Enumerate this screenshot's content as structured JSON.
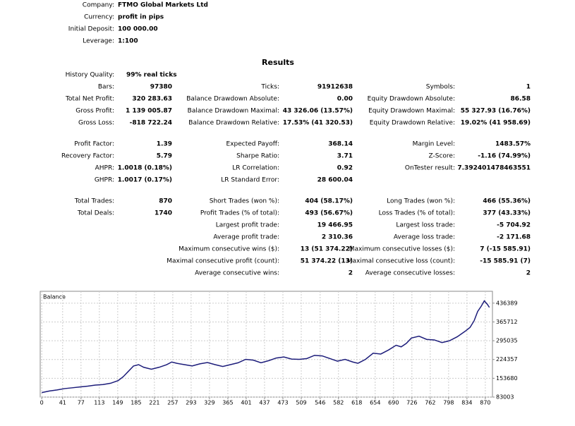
{
  "header": {
    "fields": [
      {
        "label": "Company:",
        "value": "FTMO Global Markets Ltd"
      },
      {
        "label": "Currency:",
        "value": "profit in pips"
      },
      {
        "label": "Initial Deposit:",
        "value": "100 000.00"
      },
      {
        "label": "Leverage:",
        "value": "1:100"
      }
    ]
  },
  "results": {
    "title": "Results",
    "history_quality": {
      "label": "History Quality:",
      "value": "99% real ticks"
    },
    "sections": [
      [
        [
          "Bars:",
          "97380",
          "Ticks:",
          "91912638",
          "Symbols:",
          "1"
        ],
        [
          "Total Net Profit:",
          "320 283.63",
          "Balance Drawdown Absolute:",
          "0.00",
          "Equity Drawdown Absolute:",
          "86.58"
        ],
        [
          "Gross Profit:",
          "1 139 005.87",
          "Balance Drawdown Maximal:",
          "43 326.06 (13.57%)",
          "Equity Drawdown Maximal:",
          "55 327.93 (16.76%)"
        ],
        [
          "Gross Loss:",
          "-818 722.24",
          "Balance Drawdown Relative:",
          "17.53% (41 320.53)",
          "Equity Drawdown Relative:",
          "19.02% (41 958.69)"
        ]
      ],
      [
        [
          "Profit Factor:",
          "1.39",
          "Expected Payoff:",
          "368.14",
          "Margin Level:",
          "1483.57%"
        ],
        [
          "Recovery Factor:",
          "5.79",
          "Sharpe Ratio:",
          "3.71",
          "Z-Score:",
          "-1.16 (74.99%)"
        ],
        [
          "AHPR:",
          "1.0018 (0.18%)",
          "LR Correlation:",
          "0.92",
          "OnTester result:",
          "7.392401478463551"
        ],
        [
          "GHPR:",
          "1.0017 (0.17%)",
          "LR Standard Error:",
          "28 600.04",
          null,
          null
        ]
      ],
      [
        [
          "Total Trades:",
          "870",
          "Short Trades (won %):",
          "404 (58.17%)",
          "Long Trades (won %):",
          "466 (55.36%)"
        ],
        [
          "Total Deals:",
          "1740",
          "Profit Trades (% of total):",
          "493 (56.67%)",
          "Loss Trades (% of total):",
          "377 (43.33%)"
        ],
        [
          null,
          null,
          "Largest profit trade:",
          "19 466.95",
          "Largest loss trade:",
          "-5 704.92"
        ],
        [
          null,
          null,
          "Average profit trade:",
          "2 310.36",
          "Average loss trade:",
          "-2 171.68"
        ],
        [
          null,
          null,
          "Maximum consecutive wins ($):",
          "13 (51 374.22)",
          "Maximum consecutive losses ($):",
          "7 (-15 585.91)"
        ],
        [
          null,
          null,
          "Maximal consecutive profit (count):",
          "51 374.22 (13)",
          "Maximal consecutive loss (count):",
          "-15 585.91 (7)"
        ],
        [
          null,
          null,
          "Average consecutive wins:",
          "2",
          "Average consecutive losses:",
          "2"
        ]
      ]
    ]
  },
  "chart_data": {
    "type": "line",
    "title": "Balance",
    "color": "#1c1c7a",
    "grid": true,
    "x": [
      0,
      15,
      30,
      45,
      60,
      75,
      90,
      105,
      120,
      135,
      150,
      160,
      170,
      180,
      190,
      200,
      215,
      230,
      245,
      255,
      265,
      280,
      295,
      310,
      325,
      340,
      355,
      370,
      385,
      400,
      415,
      430,
      445,
      460,
      475,
      490,
      505,
      520,
      535,
      550,
      565,
      580,
      595,
      610,
      620,
      635,
      650,
      665,
      680,
      695,
      705,
      715,
      725,
      740,
      755,
      770,
      785,
      800,
      815,
      830,
      840,
      848,
      855,
      862,
      868,
      874,
      878
    ],
    "values": [
      100000,
      106000,
      110000,
      115000,
      118000,
      121000,
      124000,
      128000,
      130000,
      135000,
      145000,
      160000,
      180000,
      200000,
      205000,
      195000,
      188000,
      195000,
      205000,
      215000,
      210000,
      205000,
      200000,
      208000,
      213000,
      205000,
      198000,
      205000,
      212000,
      225000,
      222000,
      212000,
      220000,
      230000,
      234000,
      226000,
      225000,
      228000,
      240000,
      238000,
      228000,
      218000,
      225000,
      215000,
      210000,
      225000,
      248000,
      245000,
      260000,
      278000,
      272000,
      285000,
      305000,
      312000,
      300000,
      298000,
      288000,
      295000,
      310000,
      330000,
      345000,
      370000,
      405000,
      425000,
      445000,
      432000,
      420284
    ],
    "xlim": [
      -3,
      884
    ],
    "ylim": [
      83003,
      481000
    ],
    "xticks": [
      0,
      41,
      77,
      113,
      149,
      185,
      221,
      257,
      293,
      329,
      365,
      401,
      437,
      473,
      509,
      546,
      582,
      618,
      654,
      690,
      726,
      762,
      798,
      834,
      870
    ],
    "yticks": [
      83003,
      153680,
      224357,
      295035,
      365712,
      436389
    ]
  }
}
